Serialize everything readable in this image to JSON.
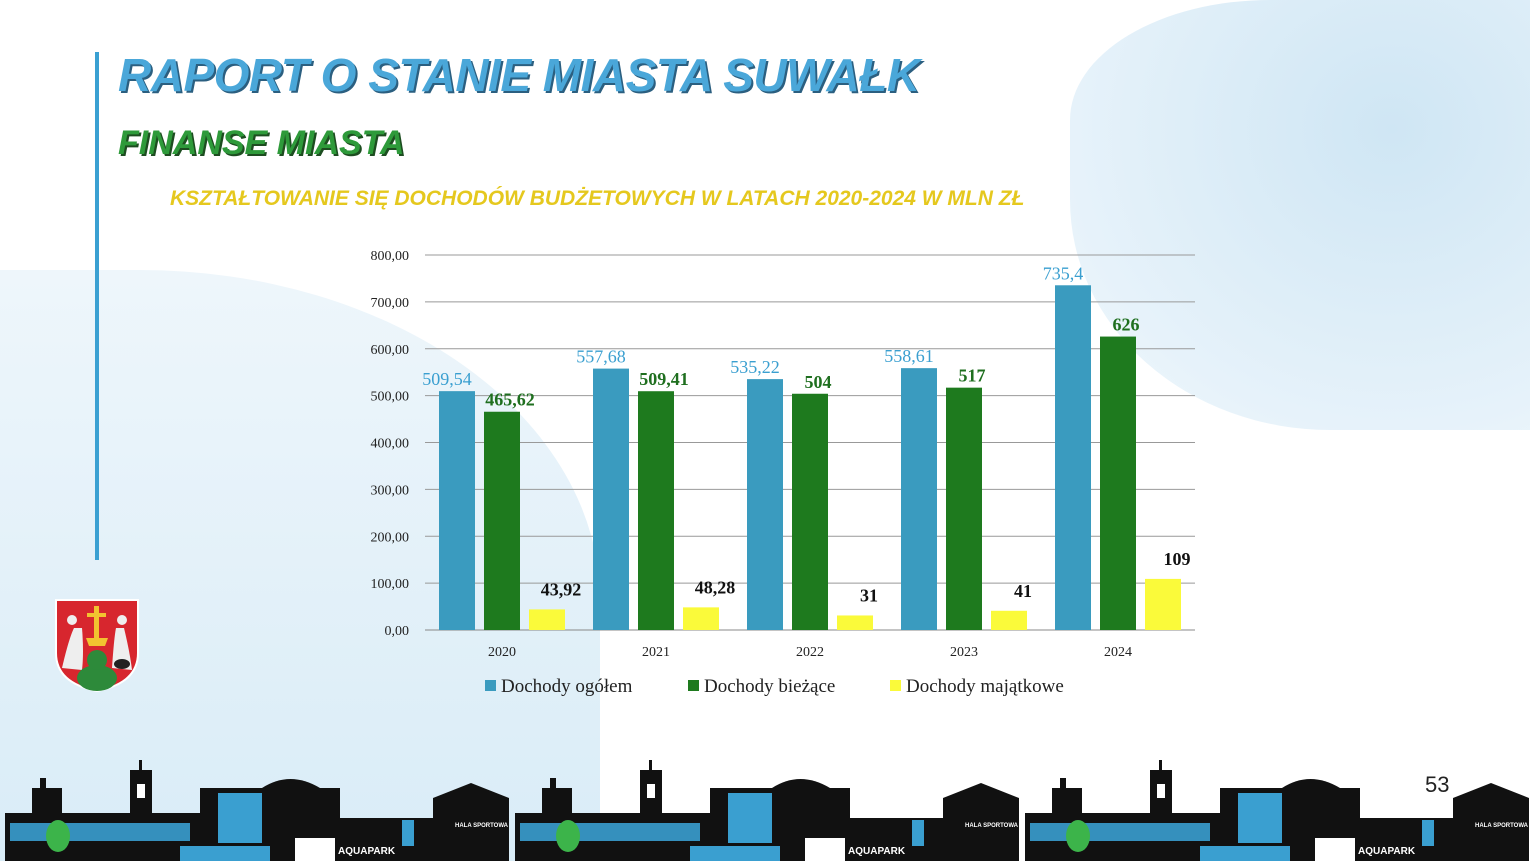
{
  "title": "RAPORT O STANIE MIASTA SUWAŁK",
  "subtitle": "FINANSE MIASTA",
  "page_number": "53",
  "skyline_labels": {
    "aquapark": "AQUAPARK",
    "hala": "HALA SPORTOWA"
  },
  "chart_data": {
    "type": "bar",
    "title": "KSZTAŁTOWANIE SIĘ DOCHODÓW BUDŻETOWYCH W LATACH 2020-2024 W MLN ZŁ",
    "categories": [
      "2020",
      "2021",
      "2022",
      "2023",
      "2024"
    ],
    "ylim": [
      0,
      800
    ],
    "yticks": [
      "0,00",
      "100,00",
      "200,00",
      "300,00",
      "400,00",
      "500,00",
      "600,00",
      "700,00",
      "800,00"
    ],
    "grid": true,
    "legend_position": "bottom",
    "series": [
      {
        "name": "Dochody ogółem",
        "color": "#3a9bbf",
        "label_color": "#3a9fd0",
        "values": [
          509.54,
          557.68,
          535.22,
          558.61,
          735.4
        ],
        "labels": [
          "509,54",
          "557,68",
          "535,22",
          "558,61",
          "735,4"
        ]
      },
      {
        "name": "Dochody bieżące",
        "color": "#1e7a1e",
        "label_color": "#1f6f1f",
        "values": [
          465.62,
          509.41,
          504,
          517,
          626
        ],
        "labels": [
          "465,62",
          "509,41",
          "504",
          "517",
          "626"
        ]
      },
      {
        "name": "Dochody majątkowe",
        "color": "#fafa3a",
        "label_color": "#111111",
        "values": [
          43.92,
          48.28,
          31,
          41,
          109
        ],
        "labels": [
          "43,92",
          "48,28",
          "31",
          "41",
          "109"
        ]
      }
    ]
  }
}
